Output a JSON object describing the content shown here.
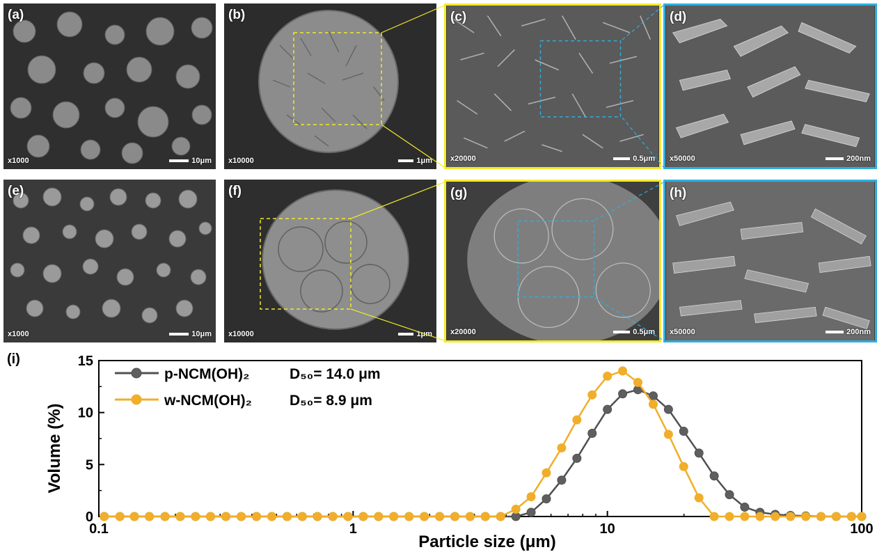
{
  "panels": [
    {
      "label": "(a)",
      "mag": "x1000",
      "scale": "10μm"
    },
    {
      "label": "(b)",
      "mag": "x10000",
      "scale": "1μm"
    },
    {
      "label": "(c)",
      "mag": "x20000",
      "scale": "0.5μm"
    },
    {
      "label": "(d)",
      "mag": "x50000",
      "scale": "200nm"
    },
    {
      "label": "(e)",
      "mag": "x1000",
      "scale": "10μm"
    },
    {
      "label": "(f)",
      "mag": "x10000",
      "scale": "1μm"
    },
    {
      "label": "(g)",
      "mag": "x20000",
      "scale": "0.5μm"
    },
    {
      "label": "(h)",
      "mag": "x50000",
      "scale": "200nm"
    }
  ],
  "colors": {
    "zoom_yellow": "#f2ea2a",
    "zoom_blue": "#2eaee0",
    "p_series": "#505050",
    "w_series": "#f0ae2a"
  },
  "chart_data": {
    "type": "line",
    "panel_label": "(i)",
    "xlabel": "Particle size (μm)",
    "ylabel": "Volume (%)",
    "xscale": "log",
    "xlim": [
      0.1,
      100
    ],
    "ylim": [
      0,
      15
    ],
    "xticks": [
      "0.1",
      "1",
      "10",
      "100"
    ],
    "yticks": [
      "0",
      "5",
      "10",
      "15"
    ],
    "legend_position": "top-left",
    "series": [
      {
        "name": "p-NCM(OH)₂",
        "d50": "D₅₀= 14.0 μm",
        "x": [
          0.105,
          0.121,
          0.138,
          0.158,
          0.182,
          0.209,
          0.24,
          0.275,
          0.316,
          0.363,
          0.417,
          0.479,
          0.55,
          0.631,
          0.724,
          0.832,
          0.955,
          1.096,
          1.259,
          1.445,
          1.66,
          1.905,
          2.188,
          2.512,
          2.884,
          3.311,
          3.802,
          4.365,
          5.012,
          5.754,
          6.607,
          7.586,
          8.71,
          10.0,
          11.48,
          13.18,
          15.14,
          17.38,
          19.95,
          22.91,
          26.3,
          30.2,
          34.67,
          39.81,
          45.71,
          52.48,
          60.26,
          69.18,
          79.43,
          91.2,
          100
        ],
        "y": [
          0,
          0,
          0,
          0,
          0,
          0,
          0,
          0,
          0,
          0,
          0,
          0,
          0,
          0,
          0,
          0,
          0,
          0,
          0,
          0,
          0,
          0,
          0,
          0,
          0,
          0,
          0,
          0,
          0.4,
          1.7,
          3.5,
          5.6,
          8.0,
          10.3,
          11.8,
          12.2,
          11.6,
          10.3,
          8.2,
          6.1,
          3.9,
          2.1,
          0.9,
          0.4,
          0.2,
          0.1,
          0.05,
          0,
          0,
          0,
          0
        ]
      },
      {
        "name": "w-NCM(OH)₂",
        "d50": "D₅₀= 8.9 μm",
        "x": [
          0.105,
          0.121,
          0.138,
          0.158,
          0.182,
          0.209,
          0.24,
          0.275,
          0.316,
          0.363,
          0.417,
          0.479,
          0.55,
          0.631,
          0.724,
          0.832,
          0.955,
          1.096,
          1.259,
          1.445,
          1.66,
          1.905,
          2.188,
          2.512,
          2.884,
          3.311,
          3.802,
          4.365,
          5.012,
          5.754,
          6.607,
          7.586,
          8.71,
          10.0,
          11.48,
          13.18,
          15.14,
          17.38,
          19.95,
          22.91,
          26.3,
          30.2,
          34.67,
          39.81,
          45.71,
          52.48,
          60.26,
          69.18,
          79.43,
          91.2,
          100
        ],
        "y": [
          0,
          0,
          0,
          0,
          0,
          0,
          0,
          0,
          0,
          0,
          0,
          0,
          0,
          0,
          0,
          0,
          0,
          0,
          0,
          0,
          0,
          0,
          0,
          0,
          0,
          0,
          0,
          0.7,
          1.9,
          4.2,
          6.6,
          9.3,
          11.7,
          13.5,
          14.0,
          12.9,
          10.8,
          7.9,
          4.8,
          1.8,
          0,
          0,
          0,
          0,
          0,
          0,
          0,
          0,
          0,
          0,
          0
        ]
      }
    ]
  }
}
